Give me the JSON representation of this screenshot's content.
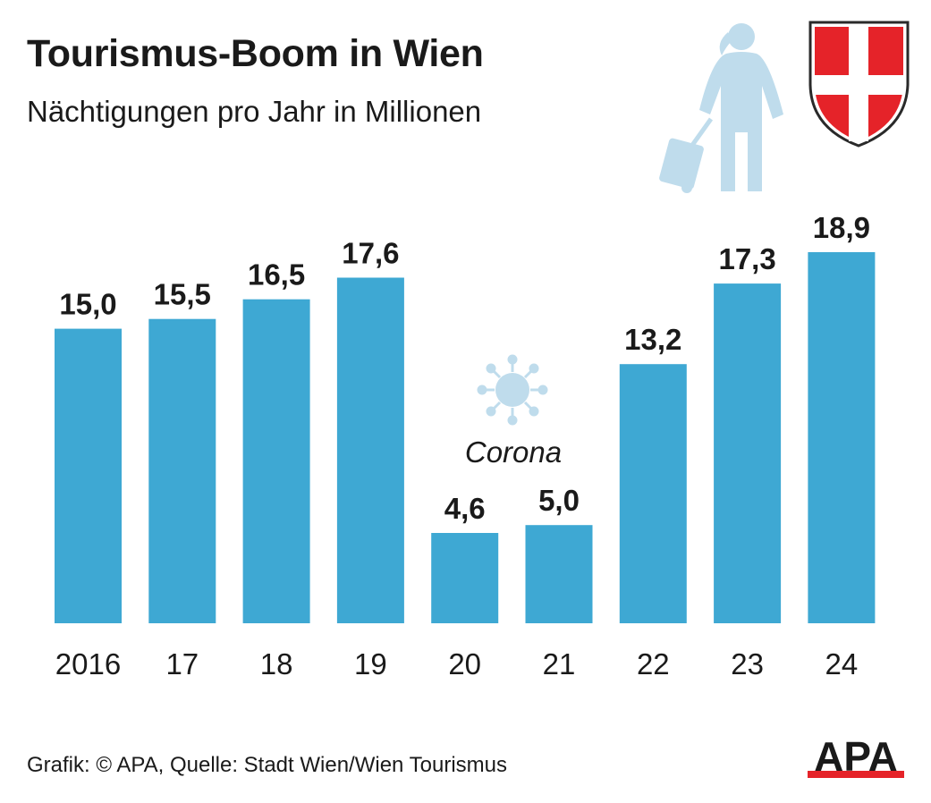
{
  "header": {
    "title": "Tourismus-Boom in Wien",
    "subtitle": "Nächtigungen pro Jahr in Millionen"
  },
  "footer": {
    "credit": "Grafik: © APA, Quelle: Stadt Wien/Wien Tourismus"
  },
  "logo": {
    "text": "APA"
  },
  "icons": [
    "traveler-icon",
    "vienna-coat-of-arms-icon",
    "virus-icon"
  ],
  "colors": {
    "bar": "#3ea8d3",
    "icon_light": "#bfdcec",
    "shield_red": "#e52329",
    "text": "#1a1a1a"
  },
  "chart_data": {
    "type": "bar",
    "categories": [
      "2016",
      "17",
      "18",
      "19",
      "20",
      "21",
      "22",
      "23",
      "24"
    ],
    "values": [
      15.0,
      15.5,
      16.5,
      17.6,
      4.6,
      5.0,
      13.2,
      17.3,
      18.9
    ],
    "value_labels": [
      "15,0",
      "15,5",
      "16,5",
      "17,6",
      "4,6",
      "5,0",
      "13,2",
      "17,3",
      "18,9"
    ],
    "title": "Tourismus-Boom in Wien",
    "subtitle": "Nächtigungen pro Jahr in Millionen",
    "ylim": [
      0,
      18.9
    ],
    "grid": false,
    "annotations": [
      {
        "text": "Corona",
        "category_span": [
          "20",
          "21"
        ]
      }
    ]
  }
}
